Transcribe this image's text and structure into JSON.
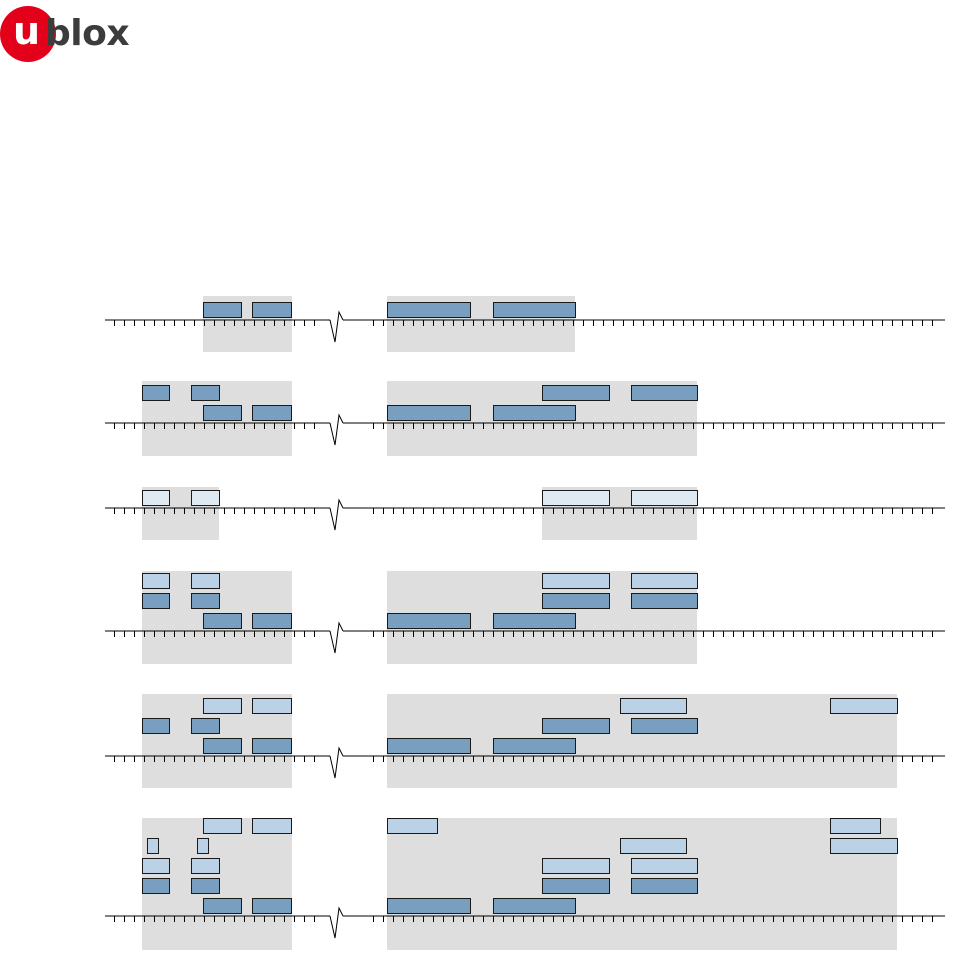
{
  "logo": {
    "u": "u",
    "text": "blox",
    "circle_color": "#e2001a",
    "text_color": "#3c3c3c"
  },
  "colors": {
    "shade": "#dedede",
    "bar_dark": "#789fc0",
    "bar_mid": "#bad1e6",
    "bar_light": "#dee9f2",
    "line": "#000000"
  },
  "timelines": [
    {
      "id": "timeline-1",
      "shades": [
        [
          203,
          292
        ],
        [
          387,
          575
        ]
      ],
      "bars": [
        {
          "x": [
            203,
            241
          ],
          "lane": 0,
          "tone": "dark"
        },
        {
          "x": [
            252,
            291
          ],
          "lane": 0,
          "tone": "dark"
        },
        {
          "x": [
            387,
            470
          ],
          "lane": 0,
          "tone": "dark"
        },
        {
          "x": [
            493,
            575
          ],
          "lane": 0,
          "tone": "dark"
        }
      ]
    },
    {
      "id": "timeline-2",
      "shades": [
        [
          142,
          292
        ],
        [
          387,
          697
        ]
      ],
      "bars": [
        {
          "x": [
            142,
            169
          ],
          "lane": 1,
          "tone": "dark"
        },
        {
          "x": [
            191,
            219
          ],
          "lane": 1,
          "tone": "dark"
        },
        {
          "x": [
            542,
            609
          ],
          "lane": 1,
          "tone": "dark"
        },
        {
          "x": [
            631,
            697
          ],
          "lane": 1,
          "tone": "dark"
        },
        {
          "x": [
            203,
            241
          ],
          "lane": 0,
          "tone": "dark"
        },
        {
          "x": [
            252,
            291
          ],
          "lane": 0,
          "tone": "dark"
        },
        {
          "x": [
            387,
            470
          ],
          "lane": 0,
          "tone": "dark"
        },
        {
          "x": [
            493,
            575
          ],
          "lane": 0,
          "tone": "dark"
        }
      ]
    },
    {
      "id": "timeline-3",
      "shades": [
        [
          142,
          219
        ],
        [
          542,
          697
        ]
      ],
      "bars": [
        {
          "x": [
            142,
            169
          ],
          "lane": 0,
          "tone": "light"
        },
        {
          "x": [
            191,
            219
          ],
          "lane": 0,
          "tone": "light"
        },
        {
          "x": [
            542,
            609
          ],
          "lane": 0,
          "tone": "light"
        },
        {
          "x": [
            631,
            697
          ],
          "lane": 0,
          "tone": "light"
        }
      ]
    },
    {
      "id": "timeline-4",
      "shades": [
        [
          142,
          292
        ],
        [
          387,
          697
        ]
      ],
      "bars": [
        {
          "x": [
            142,
            169
          ],
          "lane": 2,
          "tone": "mid"
        },
        {
          "x": [
            191,
            219
          ],
          "lane": 2,
          "tone": "mid"
        },
        {
          "x": [
            542,
            609
          ],
          "lane": 2,
          "tone": "mid"
        },
        {
          "x": [
            631,
            697
          ],
          "lane": 2,
          "tone": "mid"
        },
        {
          "x": [
            142,
            169
          ],
          "lane": 1,
          "tone": "dark"
        },
        {
          "x": [
            191,
            219
          ],
          "lane": 1,
          "tone": "dark"
        },
        {
          "x": [
            542,
            609
          ],
          "lane": 1,
          "tone": "dark"
        },
        {
          "x": [
            631,
            697
          ],
          "lane": 1,
          "tone": "dark"
        },
        {
          "x": [
            203,
            241
          ],
          "lane": 0,
          "tone": "dark"
        },
        {
          "x": [
            252,
            291
          ],
          "lane": 0,
          "tone": "dark"
        },
        {
          "x": [
            387,
            470
          ],
          "lane": 0,
          "tone": "dark"
        },
        {
          "x": [
            493,
            575
          ],
          "lane": 0,
          "tone": "dark"
        }
      ]
    },
    {
      "id": "timeline-5",
      "shades": [
        [
          142,
          292
        ],
        [
          387,
          897
        ]
      ],
      "bars": [
        {
          "x": [
            203,
            241
          ],
          "lane": 2,
          "tone": "mid"
        },
        {
          "x": [
            252,
            291
          ],
          "lane": 2,
          "tone": "mid"
        },
        {
          "x": [
            620,
            686
          ],
          "lane": 2,
          "tone": "mid"
        },
        {
          "x": [
            830,
            897
          ],
          "lane": 2,
          "tone": "mid"
        },
        {
          "x": [
            142,
            169
          ],
          "lane": 1,
          "tone": "dark"
        },
        {
          "x": [
            191,
            219
          ],
          "lane": 1,
          "tone": "dark"
        },
        {
          "x": [
            542,
            609
          ],
          "lane": 1,
          "tone": "dark"
        },
        {
          "x": [
            631,
            697
          ],
          "lane": 1,
          "tone": "dark"
        },
        {
          "x": [
            203,
            241
          ],
          "lane": 0,
          "tone": "dark"
        },
        {
          "x": [
            252,
            291
          ],
          "lane": 0,
          "tone": "dark"
        },
        {
          "x": [
            387,
            470
          ],
          "lane": 0,
          "tone": "dark"
        },
        {
          "x": [
            493,
            575
          ],
          "lane": 0,
          "tone": "dark"
        }
      ]
    },
    {
      "id": "timeline-6",
      "shades": [
        [
          142,
          292
        ],
        [
          387,
          897
        ]
      ],
      "bars": [
        {
          "x": [
            203,
            241
          ],
          "lane": 4,
          "tone": "mid"
        },
        {
          "x": [
            252,
            291
          ],
          "lane": 4,
          "tone": "mid"
        },
        {
          "x": [
            387,
            437
          ],
          "lane": 4,
          "tone": "mid"
        },
        {
          "x": [
            830,
            880
          ],
          "lane": 4,
          "tone": "mid"
        },
        {
          "x": [
            147,
            158
          ],
          "lane": 3,
          "tone": "mid"
        },
        {
          "x": [
            197,
            208
          ],
          "lane": 3,
          "tone": "mid"
        },
        {
          "x": [
            620,
            686
          ],
          "lane": 3,
          "tone": "mid"
        },
        {
          "x": [
            830,
            897
          ],
          "lane": 3,
          "tone": "mid"
        },
        {
          "x": [
            142,
            169
          ],
          "lane": 2,
          "tone": "mid"
        },
        {
          "x": [
            191,
            219
          ],
          "lane": 2,
          "tone": "mid"
        },
        {
          "x": [
            542,
            609
          ],
          "lane": 2,
          "tone": "mid"
        },
        {
          "x": [
            631,
            697
          ],
          "lane": 2,
          "tone": "mid"
        },
        {
          "x": [
            142,
            169
          ],
          "lane": 1,
          "tone": "dark"
        },
        {
          "x": [
            191,
            219
          ],
          "lane": 1,
          "tone": "dark"
        },
        {
          "x": [
            542,
            609
          ],
          "lane": 1,
          "tone": "dark"
        },
        {
          "x": [
            631,
            697
          ],
          "lane": 1,
          "tone": "dark"
        },
        {
          "x": [
            203,
            241
          ],
          "lane": 0,
          "tone": "dark"
        },
        {
          "x": [
            252,
            291
          ],
          "lane": 0,
          "tone": "dark"
        },
        {
          "x": [
            387,
            470
          ],
          "lane": 0,
          "tone": "dark"
        },
        {
          "x": [
            493,
            575
          ],
          "lane": 0,
          "tone": "dark"
        }
      ]
    }
  ]
}
